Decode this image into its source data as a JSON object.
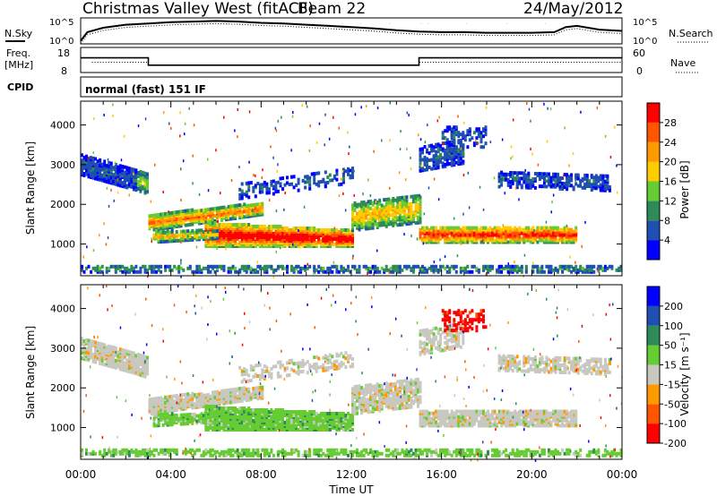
{
  "header": {
    "station": "Christmas Valley West (fitACF)",
    "beam": "Beam 22",
    "date": "24/May/2012"
  },
  "labels": {
    "nsky": "N.Sky",
    "nsearch": "N.Search",
    "freq": "Freq.",
    "freq_unit": "[MHz]",
    "nave": "Nave",
    "cpid": "CPID",
    "cpid_text": "normal (fast) 151 IF"
  },
  "colors": {
    "axis": "#000000",
    "power_scale": [
      "#0000ff",
      "#1f4fb0",
      "#2e8b57",
      "#66cc33",
      "#ffcc00",
      "#ff9900",
      "#ff5500",
      "#ff0000"
    ],
    "velocity_scale": [
      "#0000ff",
      "#1f4fb0",
      "#2e8b57",
      "#66cc33",
      "#c8c8c0",
      "#ff9900",
      "#ff5500",
      "#ff0000"
    ]
  },
  "chart_data": [
    {
      "type": "line",
      "id": "noise",
      "left_ticks": [
        "10^5",
        "10^0"
      ],
      "right_ticks": [
        "10^5",
        "10^0"
      ],
      "x_range": [
        0,
        24
      ],
      "series": [
        {
          "name": "N.Sky",
          "x": [
            0,
            0.3,
            1,
            2,
            3,
            4,
            5,
            6,
            7,
            8,
            9,
            10,
            11,
            12,
            13,
            14,
            15,
            16,
            17,
            18,
            19,
            20,
            21,
            21.5,
            22,
            23,
            24
          ],
          "values": [
            0.2,
            1.6,
            2.3,
            2.8,
            3.0,
            3.2,
            3.3,
            3.4,
            3.3,
            3.1,
            3.0,
            2.8,
            2.6,
            2.4,
            2.2,
            1.9,
            1.7,
            1.6,
            1.6,
            1.5,
            1.5,
            1.5,
            1.6,
            2.4,
            2.6,
            2.0,
            1.8
          ]
        }
      ]
    },
    {
      "type": "line",
      "id": "freq",
      "left_ticks": [
        "18",
        "8"
      ],
      "right_ticks": [
        "60",
        "0"
      ],
      "series": [
        {
          "name": "Freq.",
          "x": [
            0,
            3,
            3,
            15,
            15,
            24
          ],
          "values": [
            14,
            14,
            10.6,
            10.6,
            14,
            14
          ]
        }
      ]
    },
    {
      "type": "heatmap",
      "id": "power",
      "ylabel": "Slant Range [km]",
      "y_ticks": [
        1000,
        2000,
        3000,
        4000
      ],
      "y_range": [
        200,
        4600
      ],
      "x_range": [
        0,
        24
      ],
      "colorbar_label": "Power [dB]",
      "colorbar_ticks": [
        4,
        8,
        12,
        16,
        20,
        24,
        28
      ]
    },
    {
      "type": "heatmap",
      "id": "velocity",
      "ylabel": "Slant Range [km]",
      "y_ticks": [
        1000,
        2000,
        3000,
        4000
      ],
      "y_range": [
        200,
        4600
      ],
      "x_range": [
        0,
        24
      ],
      "xlabel": "Time UT",
      "x_ticks": [
        "00:00",
        "04:00",
        "08:00",
        "12:00",
        "16:00",
        "20:00",
        "00:00"
      ],
      "colorbar_label": "Velocity [m s⁻¹]",
      "colorbar_ticks": [
        200,
        100,
        50,
        15,
        -15,
        -50,
        -100,
        -200
      ]
    }
  ]
}
